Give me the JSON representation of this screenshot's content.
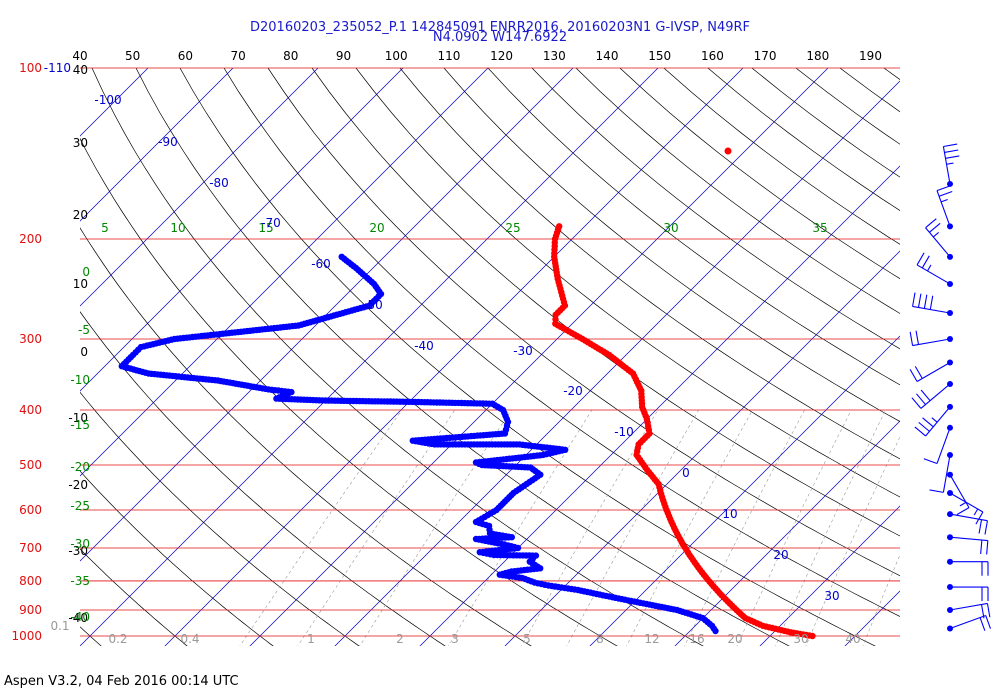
{
  "header": {
    "line1": "D20160203_235052_P.1 142845091 ENRR2016, 20160203N1 G-IVSP, N49RF",
    "line2": "N4.0902 W147.6922"
  },
  "footer": {
    "text": "Aspen V3.2, 04 Feb 2016  00:14 UTC"
  },
  "colors": {
    "pressure_lines": "#e01010",
    "temperature": "#ff0000",
    "dewpoint": "#0000ff",
    "isotherms": "#0000cc",
    "mixing_ratio": "#008800",
    "adiabats": "#000000"
  },
  "chart_data": {
    "type": "skew-t log-p",
    "pressure_labels": [
      "100",
      "200",
      "300",
      "400",
      "500",
      "600",
      "700",
      "800",
      "900",
      "1000"
    ],
    "pressure_label_top_extra": "-110",
    "top_tick_labels": [
      "40",
      "50",
      "60",
      "70",
      "80",
      "90",
      "100",
      "110",
      "120",
      "130",
      "140",
      "150",
      "160",
      "170",
      "180",
      "190"
    ],
    "left_height_labels": [
      "40",
      "30",
      "20",
      "10",
      "0",
      "-10",
      "-20",
      "-30",
      "-40"
    ],
    "isotherm_labels": [
      "-100",
      "-90",
      "-80",
      "-70",
      "-60",
      "-50",
      "-40",
      "-30",
      "-20",
      "-10",
      "0",
      "10",
      "20",
      "30"
    ],
    "mixing_ratio_top_labels": [
      "5",
      "10",
      "15",
      "20",
      "25",
      "30",
      "35"
    ],
    "green_left_labels": [
      "0",
      "-5",
      "-10",
      "-15",
      "-20",
      "-25",
      "-30",
      "-35",
      "-40"
    ],
    "bottom_labels": [
      "0.1",
      "0.2",
      "0.4",
      "1",
      "2",
      "3",
      "5",
      "8",
      "12",
      "16",
      "20",
      "30",
      "40"
    ],
    "temperature_series": {
      "name": "temperature",
      "points": [
        [
          -53,
          190
        ],
        [
          -52,
          200
        ],
        [
          -50,
          215
        ],
        [
          -47,
          235
        ],
        [
          -44,
          255
        ],
        [
          -43,
          262
        ],
        [
          -43,
          272
        ],
        [
          -42,
          282
        ],
        [
          -37,
          300
        ],
        [
          -32,
          320
        ],
        [
          -27,
          345
        ],
        [
          -24,
          370
        ],
        [
          -22,
          395
        ],
        [
          -20,
          415
        ],
        [
          -18,
          440
        ],
        [
          -18,
          460
        ],
        [
          -17,
          480
        ],
        [
          -14,
          510
        ],
        [
          -11,
          540
        ],
        [
          -9,
          570
        ],
        [
          -7,
          600
        ],
        [
          -5,
          630
        ],
        [
          -3,
          660
        ],
        [
          -1,
          690
        ],
        [
          1,
          720
        ],
        [
          3,
          750
        ],
        [
          5,
          780
        ],
        [
          7,
          810
        ],
        [
          9,
          840
        ],
        [
          11,
          870
        ],
        [
          13,
          900
        ],
        [
          15,
          930
        ],
        [
          18,
          960
        ],
        [
          22,
          985
        ],
        [
          25,
          1000
        ]
      ]
    },
    "dewpoint_series": {
      "name": "dewpoint",
      "points": [
        [
          -75,
          215
        ],
        [
          -72,
          225
        ],
        [
          -68,
          240
        ],
        [
          -66,
          250
        ],
        [
          -66,
          262
        ],
        [
          -72,
          284
        ],
        [
          -85,
          300
        ],
        [
          -88,
          310
        ],
        [
          -88,
          320
        ],
        [
          -88,
          335
        ],
        [
          -84,
          345
        ],
        [
          -75,
          355
        ],
        [
          -68,
          368
        ],
        [
          -65,
          372
        ],
        [
          -66,
          382
        ],
        [
          -60,
          385
        ],
        [
          -50,
          387
        ],
        [
          -40,
          390
        ],
        [
          -38,
          400
        ],
        [
          -36,
          420
        ],
        [
          -35,
          440
        ],
        [
          -45,
          453
        ],
        [
          -42,
          460
        ],
        [
          -32,
          460
        ],
        [
          -26,
          470
        ],
        [
          -28,
          480
        ],
        [
          -35,
          495
        ],
        [
          -34,
          500
        ],
        [
          -28,
          505
        ],
        [
          -26,
          520
        ],
        [
          -27,
          560
        ],
        [
          -27,
          600
        ],
        [
          -28,
          630
        ],
        [
          -26,
          640
        ],
        [
          -25,
          660
        ],
        [
          -22,
          670
        ],
        [
          -26,
          675
        ],
        [
          -22,
          690
        ],
        [
          -20,
          700
        ],
        [
          -24,
          712
        ],
        [
          -22,
          720
        ],
        [
          -17,
          722
        ],
        [
          -17,
          740
        ],
        [
          -15,
          760
        ],
        [
          -18,
          770
        ],
        [
          -19,
          780
        ],
        [
          -16,
          790
        ],
        [
          -14,
          805
        ],
        [
          -12,
          815
        ],
        [
          -8,
          830
        ],
        [
          -4,
          850
        ],
        [
          0,
          870
        ],
        [
          6,
          900
        ],
        [
          10,
          930
        ],
        [
          12,
          960
        ],
        [
          13,
          980
        ]
      ]
    },
    "isolated_temperature_point": [
      -42,
      140
    ],
    "wind_barbs": [
      {
        "pressure": 160,
        "direction": 350,
        "speed": 35
      },
      {
        "pressure": 190,
        "direction": 340,
        "speed": 25
      },
      {
        "pressure": 215,
        "direction": 320,
        "speed": 25
      },
      {
        "pressure": 240,
        "direction": 300,
        "speed": 25
      },
      {
        "pressure": 270,
        "direction": 280,
        "speed": 40
      },
      {
        "pressure": 300,
        "direction": 260,
        "speed": 20
      },
      {
        "pressure": 330,
        "direction": 240,
        "speed": 20
      },
      {
        "pressure": 360,
        "direction": 230,
        "speed": 30
      },
      {
        "pressure": 395,
        "direction": 220,
        "speed": 35
      },
      {
        "pressure": 430,
        "direction": 200,
        "speed": 10
      },
      {
        "pressure": 480,
        "direction": 190,
        "speed": 10
      },
      {
        "pressure": 520,
        "direction": 150,
        "speed": 15
      },
      {
        "pressure": 560,
        "direction": 120,
        "speed": 15
      },
      {
        "pressure": 610,
        "direction": 100,
        "speed": 20
      },
      {
        "pressure": 670,
        "direction": 95,
        "speed": 20
      },
      {
        "pressure": 740,
        "direction": 90,
        "speed": 20
      },
      {
        "pressure": 820,
        "direction": 90,
        "speed": 20
      },
      {
        "pressure": 900,
        "direction": 80,
        "speed": 20
      },
      {
        "pressure": 970,
        "direction": 70,
        "speed": 20
      }
    ],
    "ylim": [
      100,
      1050
    ],
    "scale": "log"
  }
}
